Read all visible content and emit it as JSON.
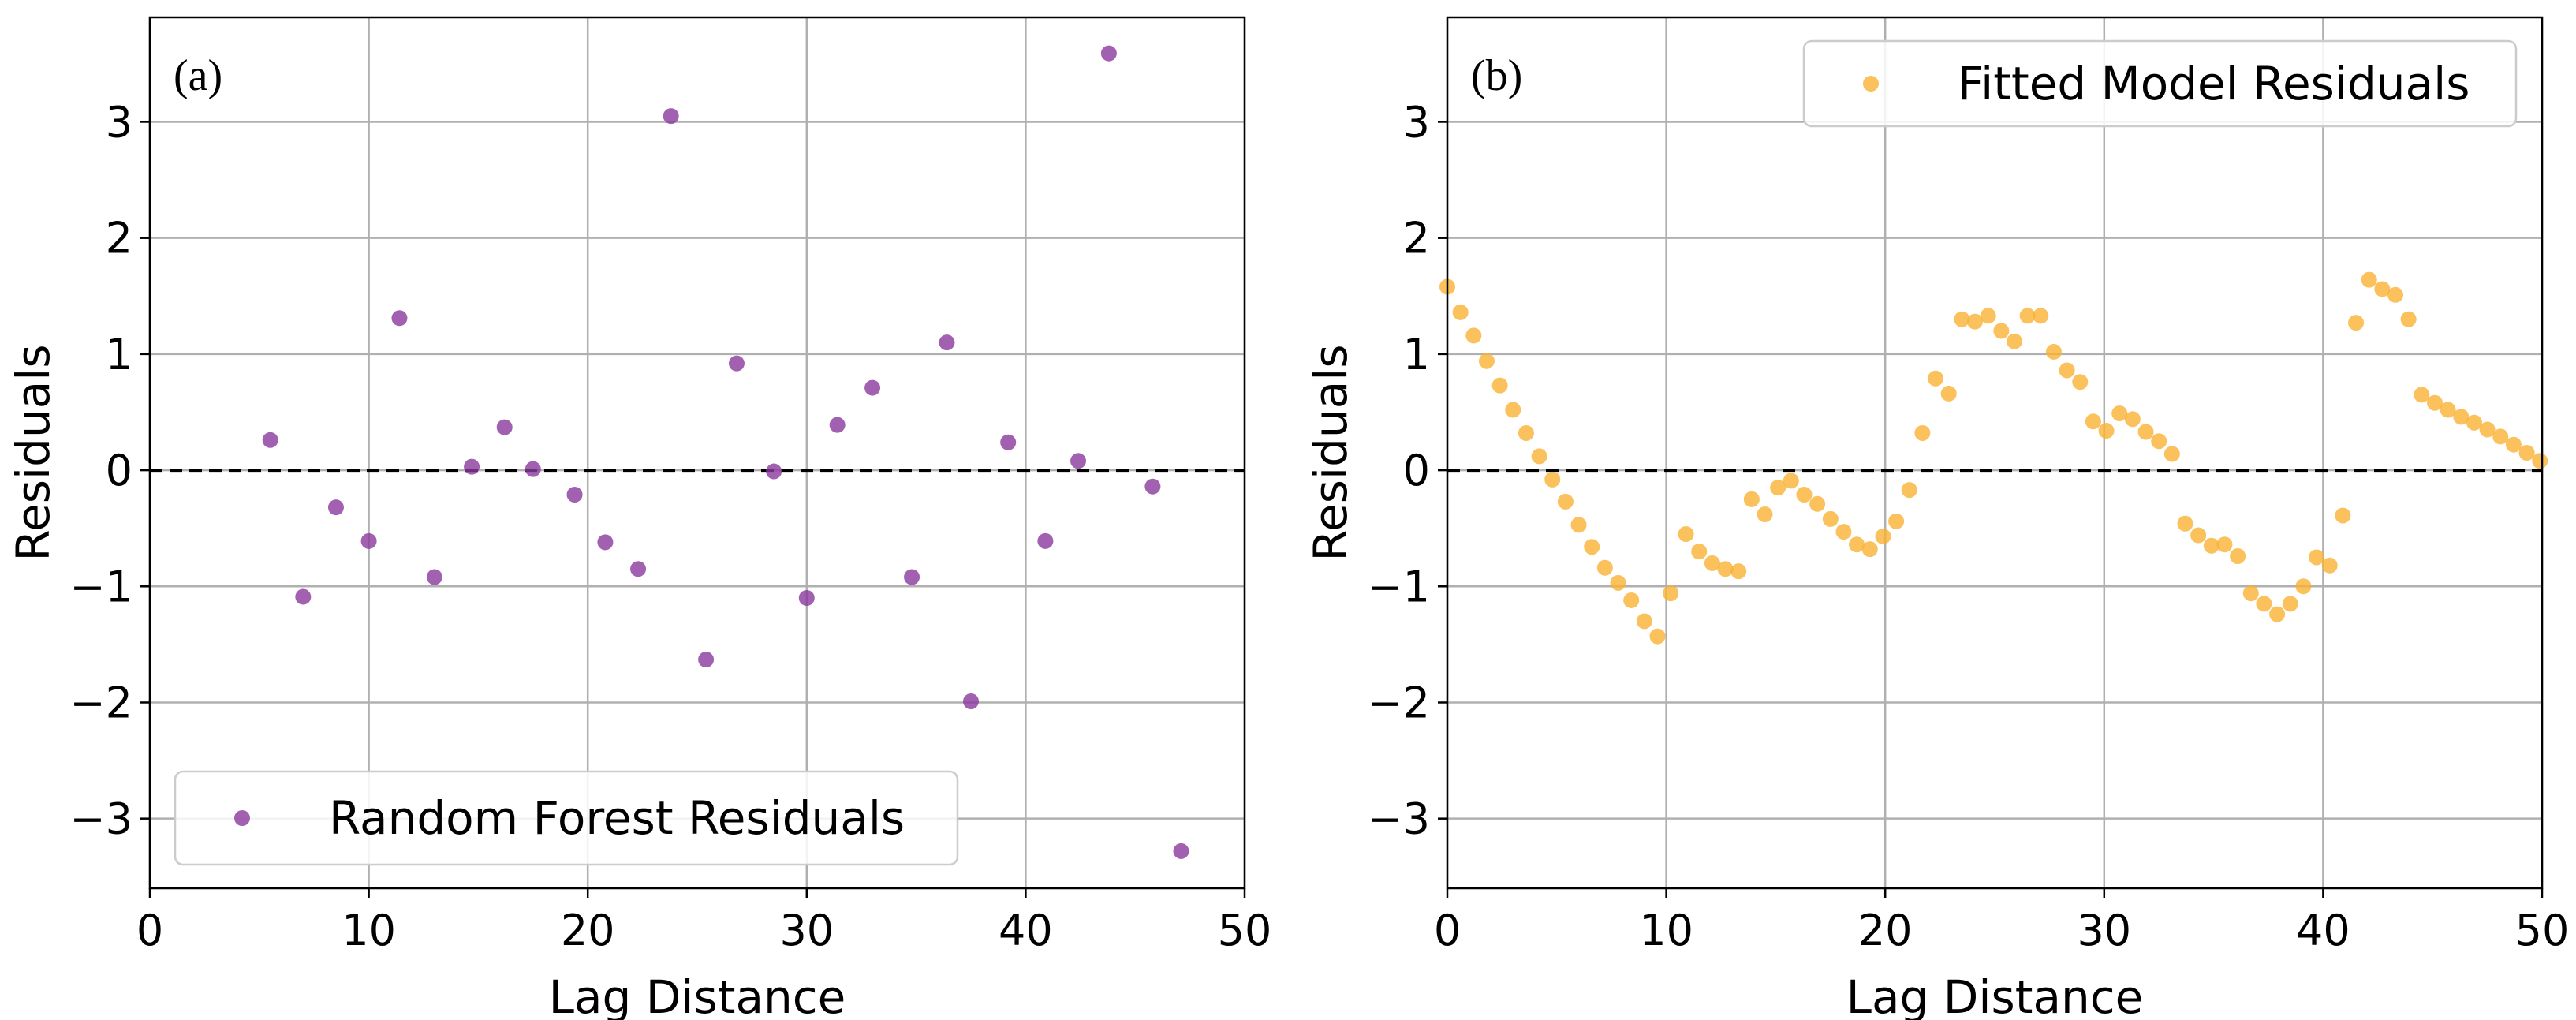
{
  "chart_data": [
    {
      "type": "scatter",
      "panel_label": "(a)",
      "xlabel": "Lag Distance",
      "ylabel": "Residuals",
      "xlim": [
        0,
        50
      ],
      "ylim": [
        -3.6,
        3.9
      ],
      "xticks": [
        0,
        10,
        20,
        30,
        40,
        50
      ],
      "yticks": [
        3,
        2,
        1,
        0,
        -1,
        -2,
        -3
      ],
      "xtick_labels": [
        "0",
        "10",
        "20",
        "30",
        "40",
        "50"
      ],
      "ytick_labels": [
        "3",
        "2",
        "1",
        "0",
        "−1",
        "−2",
        "−3"
      ],
      "grid": true,
      "zero_line": true,
      "legend_position": "bottom-left",
      "series": [
        {
          "name": "Random Forest Residuals",
          "color": "#8B3A9C",
          "x": [
            5.5,
            7.0,
            8.5,
            10.0,
            11.4,
            13.0,
            14.7,
            16.2,
            17.5,
            19.4,
            20.8,
            22.3,
            23.8,
            25.4,
            26.8,
            28.5,
            30.0,
            31.4,
            33.0,
            34.8,
            36.4,
            37.5,
            39.2,
            40.9,
            42.4,
            43.8,
            45.8,
            47.1
          ],
          "y": [
            0.26,
            -1.09,
            -0.32,
            -0.61,
            1.31,
            -0.92,
            0.03,
            0.37,
            0.01,
            -0.21,
            -0.62,
            -0.85,
            3.05,
            -1.63,
            0.92,
            -0.01,
            -1.1,
            0.39,
            0.71,
            -0.92,
            1.1,
            -1.99,
            0.24,
            -0.61,
            0.08,
            3.59,
            -0.14,
            -3.28
          ]
        }
      ]
    },
    {
      "type": "scatter",
      "panel_label": "(b)",
      "xlabel": "Lag Distance",
      "ylabel": "Residuals",
      "xlim": [
        0,
        50
      ],
      "ylim": [
        -3.6,
        3.9
      ],
      "xticks": [
        0,
        10,
        20,
        30,
        40,
        50
      ],
      "yticks": [
        3,
        2,
        1,
        0,
        -1,
        -2,
        -3
      ],
      "xtick_labels": [
        "0",
        "10",
        "20",
        "30",
        "40",
        "50"
      ],
      "ytick_labels": [
        "3",
        "2",
        "1",
        "0",
        "−1",
        "−2",
        "−3"
      ],
      "grid": true,
      "zero_line": true,
      "legend_position": "top-right",
      "series": [
        {
          "name": "Fitted Model Residuals",
          "color": "#F9B233",
          "x": [
            0.0,
            0.6,
            1.2,
            1.8,
            2.4,
            3.0,
            3.6,
            4.2,
            4.8,
            5.4,
            6.0,
            6.6,
            7.2,
            7.8,
            8.4,
            9.0,
            9.6,
            10.2,
            10.9,
            11.5,
            12.1,
            12.7,
            13.3,
            13.9,
            14.5,
            15.1,
            15.7,
            16.3,
            16.9,
            17.5,
            18.1,
            18.7,
            19.3,
            19.9,
            20.5,
            21.1,
            21.7,
            22.3,
            22.9,
            23.5,
            24.1,
            24.7,
            25.3,
            25.9,
            26.5,
            27.1,
            27.7,
            28.3,
            28.9,
            29.5,
            30.1,
            30.7,
            31.3,
            31.9,
            32.5,
            33.1,
            33.7,
            34.3,
            34.9,
            35.5,
            36.1,
            36.7,
            37.3,
            37.9,
            38.5,
            39.1,
            39.7,
            40.3,
            40.9,
            41.5,
            42.1,
            42.7,
            43.3,
            43.9,
            44.5,
            45.1,
            45.7,
            46.3,
            46.9,
            47.5,
            48.1,
            48.7,
            49.3,
            49.9
          ],
          "y": [
            1.58,
            1.36,
            1.16,
            0.94,
            0.73,
            0.52,
            0.32,
            0.12,
            -0.08,
            -0.27,
            -0.47,
            -0.66,
            -0.84,
            -0.97,
            -1.12,
            -1.3,
            -1.43,
            -1.06,
            -0.55,
            -0.7,
            -0.8,
            -0.85,
            -0.87,
            -0.25,
            -0.38,
            -0.15,
            -0.09,
            -0.21,
            -0.29,
            -0.42,
            -0.53,
            -0.64,
            -0.68,
            -0.57,
            -0.44,
            -0.17,
            0.32,
            0.79,
            0.66,
            1.3,
            1.28,
            1.33,
            1.2,
            1.11,
            1.33,
            1.33,
            1.02,
            0.86,
            0.76,
            0.42,
            0.34,
            0.49,
            0.44,
            0.33,
            0.25,
            0.14,
            -0.46,
            -0.56,
            -0.65,
            -0.64,
            -0.74,
            -1.06,
            -1.15,
            -1.24,
            -1.15,
            -1.0,
            -0.75,
            -0.82,
            -0.39,
            1.27,
            1.64,
            1.56,
            1.51,
            1.3,
            0.65,
            0.58,
            0.52,
            0.46,
            0.41,
            0.35,
            0.29,
            0.22,
            0.15,
            0.08
          ]
        }
      ]
    }
  ]
}
